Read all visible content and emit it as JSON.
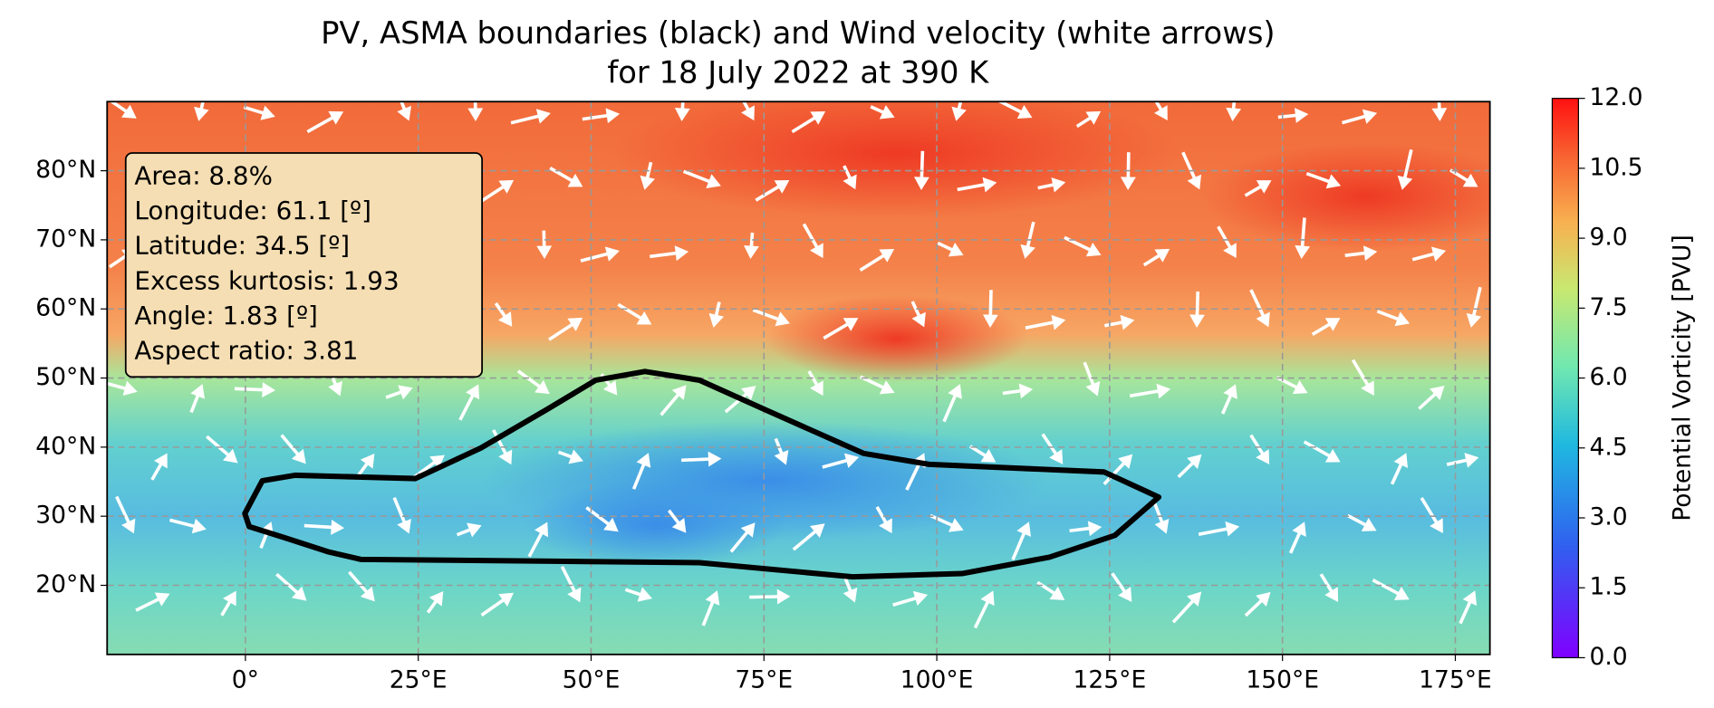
{
  "title": [
    "PV, ASMA boundaries (black) and Wind velocity (white arrows)",
    "for 18 July 2022 at 390 K"
  ],
  "map": {
    "xlim": [
      -20,
      180
    ],
    "xticks": [
      {
        "value": 0,
        "label": "0°"
      },
      {
        "value": 25,
        "label": "25°E"
      },
      {
        "value": 50,
        "label": "50°E"
      },
      {
        "value": 75,
        "label": "75°E"
      },
      {
        "value": 100,
        "label": "100°E"
      },
      {
        "value": 125,
        "label": "125°E"
      },
      {
        "value": 150,
        "label": "150°E"
      },
      {
        "value": 175,
        "label": "175°E"
      }
    ],
    "ylim": [
      10,
      90
    ],
    "yticks": [
      {
        "value": 20,
        "label": "20°N"
      },
      {
        "value": 30,
        "label": "30°N"
      },
      {
        "value": 40,
        "label": "40°N"
      },
      {
        "value": 50,
        "label": "50°N"
      },
      {
        "value": 60,
        "label": "60°N"
      },
      {
        "value": 70,
        "label": "70°N"
      },
      {
        "value": 80,
        "label": "80°N"
      }
    ],
    "grid": true
  },
  "info_box": [
    "Area: 8.8%",
    "Longitude: 61.1 [º]",
    "Latitude: 34.5 [º]",
    "Excess kurtosis: 1.93",
    "Angle: 1.83 [º]",
    "Aspect ratio: 3.81"
  ],
  "colorbar": {
    "label": "Potential Vorticity [PVU]",
    "lim": [
      0,
      12
    ],
    "ticks": [
      {
        "value": 0,
        "label": "0.0"
      },
      1.5,
      {
        "value": 3,
        "label": "3.0"
      },
      4.5,
      {
        "value": 6,
        "label": "6.0"
      },
      7.5,
      {
        "value": 9,
        "label": "9.0"
      },
      10.5,
      {
        "value": 12,
        "label": "12.0"
      }
    ]
  }
}
